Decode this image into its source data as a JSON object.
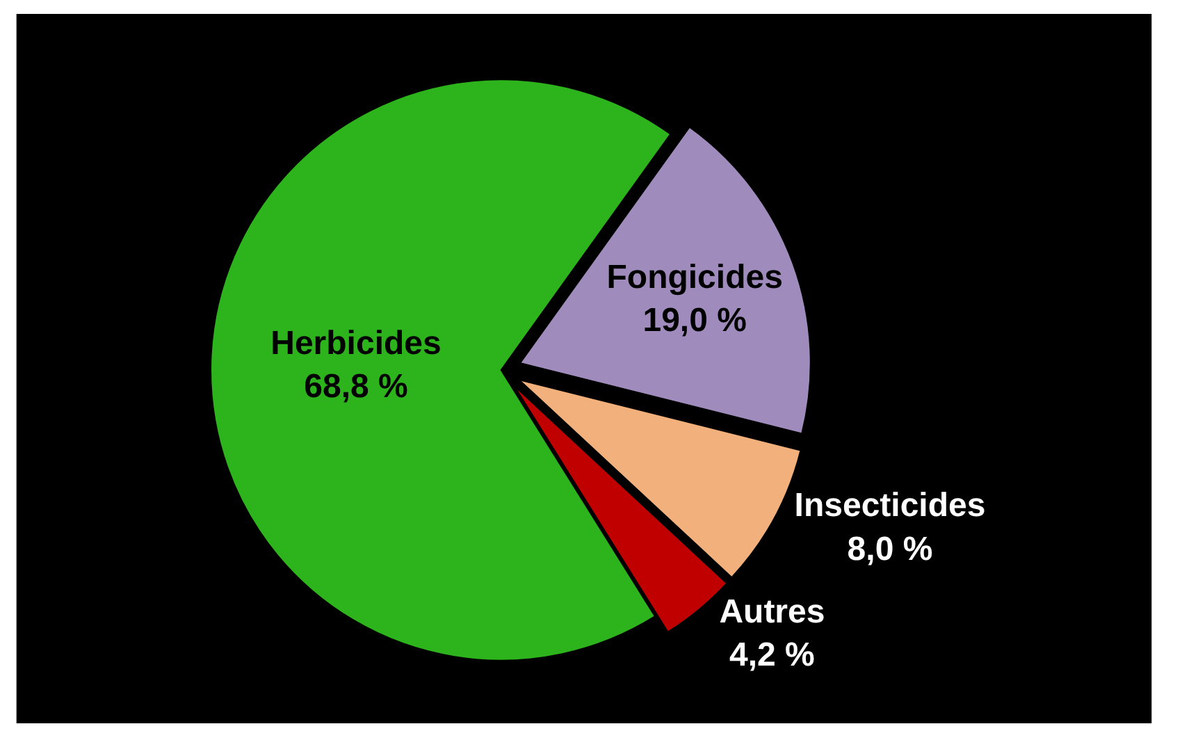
{
  "chart_data": {
    "type": "pie",
    "categories": [
      "Herbicides",
      "Fongicides",
      "Insecticides",
      "Autres"
    ],
    "values": [
      68.8,
      19.0,
      8.0,
      4.2
    ],
    "colors": [
      "#2db31b",
      "#a08bbd",
      "#f2b07c",
      "#c00000"
    ],
    "value_labels": [
      "68,8 %",
      "19,0 %",
      "8,0 %",
      "4,2 %"
    ],
    "legend": false
  }
}
